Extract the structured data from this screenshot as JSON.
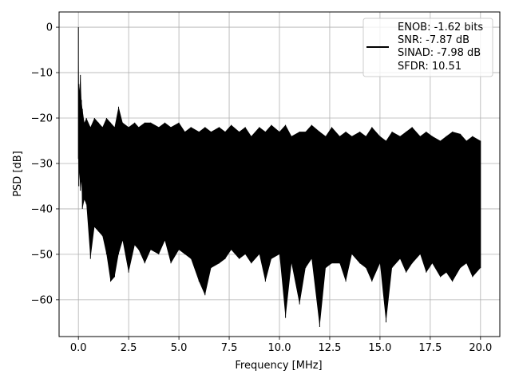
{
  "chart_data": {
    "type": "line",
    "xlabel": "Frequency [MHz]",
    "ylabel": "PSD [dB]",
    "xlim": [
      -0.96,
      20.96
    ],
    "ylim": [
      -68.1,
      3.35
    ],
    "xticks": [
      0.0,
      2.5,
      5.0,
      7.5,
      10.0,
      12.5,
      15.0,
      17.5,
      20.0
    ],
    "xtick_labels": [
      "0.0",
      "2.5",
      "5.0",
      "7.5",
      "10.0",
      "12.5",
      "15.0",
      "17.5",
      "20.0"
    ],
    "yticks": [
      0,
      -10,
      -20,
      -30,
      -40,
      -50,
      -60
    ],
    "ytick_labels": [
      "0",
      "−10",
      "−20",
      "−30",
      "−40",
      "−50",
      "−60"
    ],
    "grid": true,
    "legend_position": "top-right",
    "series": [
      {
        "color": "#000000",
        "legend_lines": [
          "ENOB: -1.62 bits",
          "SNR: -7.87 dB",
          "SINAD: -7.98 dB",
          "SFDR: 10.51"
        ],
        "x": [
          0,
          0.02,
          0.05,
          0.1,
          0.15,
          0.2,
          0.3,
          0.4,
          0.6,
          0.8,
          1.0,
          1.2,
          1.4,
          1.6,
          1.8,
          2.0,
          2.2,
          2.5,
          2.8,
          3.0,
          3.3,
          3.6,
          4.0,
          4.3,
          4.6,
          5.0,
          5.3,
          5.6,
          6.0,
          6.3,
          6.6,
          7.0,
          7.3,
          7.6,
          8.0,
          8.3,
          8.6,
          9.0,
          9.3,
          9.6,
          10.0,
          10.3,
          10.6,
          11.0,
          11.3,
          11.6,
          12.0,
          12.3,
          12.6,
          13.0,
          13.3,
          13.6,
          14.0,
          14.3,
          14.6,
          15.0,
          15.3,
          15.6,
          16.0,
          16.3,
          16.6,
          17.0,
          17.3,
          17.6,
          18.0,
          18.3,
          18.6,
          19.0,
          19.3,
          19.6,
          20.0
        ],
        "upper": [
          0,
          -12.5,
          -14,
          -10.5,
          -16,
          -18,
          -21,
          -20,
          -22,
          -20,
          -21,
          -22,
          -20,
          -21,
          -22,
          -17.5,
          -21,
          -22,
          -21,
          -22,
          -21,
          -21,
          -22,
          -21,
          -22,
          -21,
          -23,
          -22,
          -23,
          -22,
          -23,
          -22,
          -23,
          -21.5,
          -23,
          -22,
          -24,
          -22,
          -23,
          -21.5,
          -23,
          -21.5,
          -24,
          -23,
          -23,
          -21.5,
          -23,
          -24,
          -22,
          -24,
          -23,
          -24,
          -23,
          -24,
          -22,
          -24,
          -25,
          -23,
          -24,
          -23,
          -22,
          -24,
          -23,
          -24,
          -25,
          -24,
          -23,
          -23.5,
          -25,
          -24,
          -25
        ],
        "lower": [
          -29,
          -35,
          -32,
          -36,
          -34,
          -40,
          -38,
          -39,
          -51,
          -44,
          -45,
          -46,
          -50,
          -56,
          -55,
          -50,
          -47,
          -54,
          -48,
          -49,
          -52,
          -49,
          -50,
          -47,
          -52,
          -49,
          -50,
          -51,
          -56,
          -59,
          -53,
          -52,
          -51,
          -49,
          -51,
          -50,
          -52,
          -50,
          -56,
          -51,
          -50,
          -64,
          -52,
          -61,
          -53,
          -51,
          -66,
          -53,
          -52,
          -52,
          -56,
          -50,
          -52,
          -53,
          -56,
          -52,
          -65,
          -53,
          -51,
          -54,
          -52,
          -50,
          -54,
          -52,
          -55,
          -54,
          -56,
          -53,
          -52,
          -55,
          -53
        ]
      }
    ]
  }
}
